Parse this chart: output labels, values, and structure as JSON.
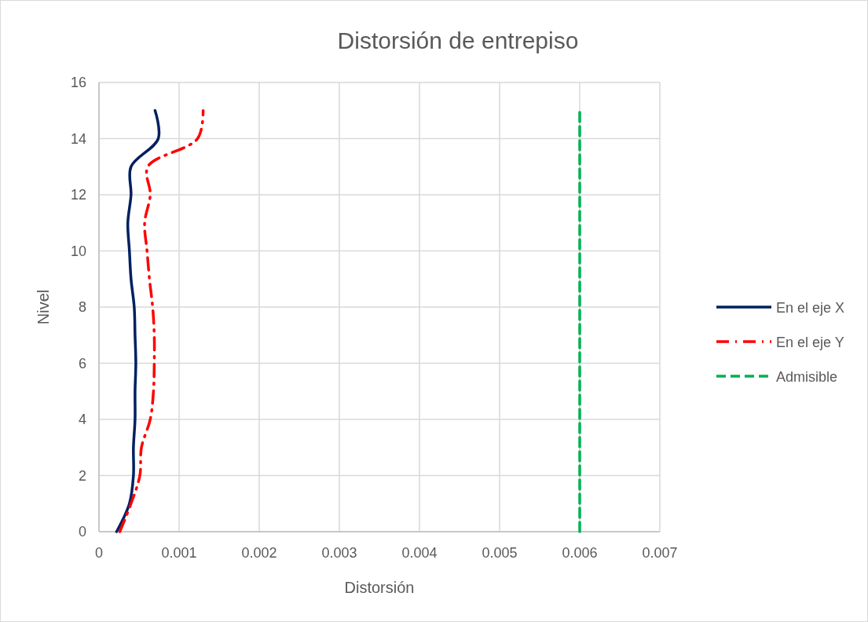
{
  "chart_data": {
    "type": "line",
    "title": "Distorsión de entrepiso",
    "xlabel": "Distorsión",
    "ylabel": "Nivel",
    "xlim": [
      0,
      0.007
    ],
    "xticks": [
      0,
      0.001,
      0.002,
      0.003,
      0.004,
      0.005,
      0.006,
      0.007
    ],
    "ylim": [
      0,
      16
    ],
    "yticks": [
      0,
      2,
      4,
      6,
      8,
      10,
      12,
      14,
      16
    ],
    "grid": true,
    "legend": "right",
    "marker": "none",
    "series": [
      {
        "name": "En el eje X",
        "color": "#002060",
        "line_style": "solid",
        "x": [
          0.00022,
          0.00038,
          0.00043,
          0.00043,
          0.00045,
          0.00045,
          0.00046,
          0.00045,
          0.00044,
          0.0004,
          0.00038,
          0.00036,
          0.0004,
          0.0004,
          0.00074,
          0.0007
        ],
        "values": [
          0,
          1,
          2,
          3,
          4,
          5,
          6,
          7,
          8,
          9,
          10,
          11,
          12,
          13,
          14,
          15
        ]
      },
      {
        "name": "En el eje Y",
        "color": "#ff0000",
        "line_style": "dashdot",
        "x": [
          0.00026,
          0.0004,
          0.00051,
          0.00053,
          0.00064,
          0.00068,
          0.00069,
          0.00069,
          0.00067,
          0.00063,
          0.0006,
          0.00057,
          0.00064,
          0.00061,
          0.00123,
          0.0013
        ],
        "values": [
          0,
          1,
          2,
          3,
          4,
          5,
          6,
          7,
          8,
          9,
          10,
          11,
          12,
          13,
          14,
          15
        ]
      },
      {
        "name": "Admisible",
        "color": "#00b050",
        "line_style": "dashed",
        "x": [
          0.006,
          0.006
        ],
        "values": [
          0,
          15
        ]
      }
    ]
  }
}
